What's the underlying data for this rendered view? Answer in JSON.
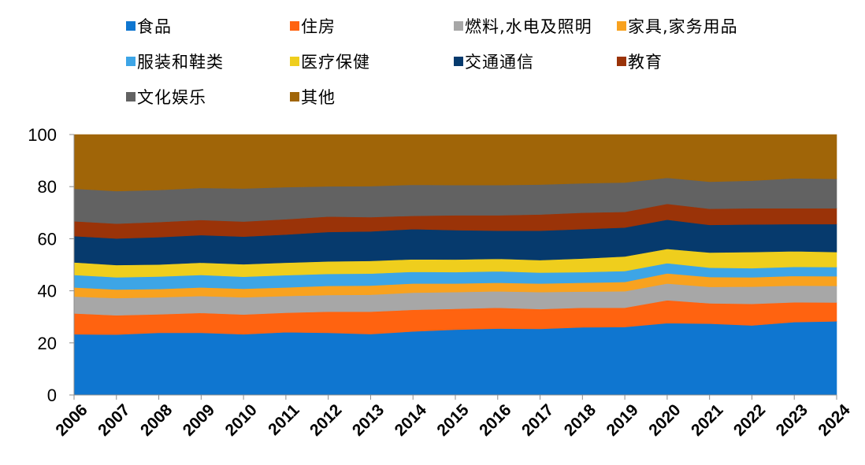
{
  "chart_data": {
    "type": "area",
    "stacked": true,
    "title": "",
    "xlabel": "",
    "ylabel": "",
    "x": [
      "2006",
      "2007",
      "2008",
      "2009",
      "2010",
      "2011",
      "2012",
      "2013",
      "2014",
      "2015",
      "2016",
      "2017",
      "2018",
      "2019",
      "2020",
      "2021",
      "2022",
      "2023",
      "2024"
    ],
    "ylim": [
      0,
      100
    ],
    "yticks": [
      0,
      20,
      40,
      60,
      80,
      100
    ],
    "grid": false,
    "legend": "top",
    "series": [
      {
        "name": "食品",
        "color": "#0F76D0",
        "values": [
          23.3,
          23.2,
          23.9,
          23.9,
          23.3,
          24.1,
          23.9,
          23.4,
          24.4,
          25.1,
          25.5,
          25.4,
          26.0,
          26.1,
          27.6,
          27.4,
          26.7,
          28.0,
          28.3
        ]
      },
      {
        "name": "住房",
        "color": "#FF6310",
        "values": [
          8.0,
          7.4,
          7.1,
          7.6,
          7.6,
          7.5,
          8.1,
          8.6,
          8.3,
          8.0,
          8.0,
          7.6,
          7.5,
          7.4,
          8.8,
          7.8,
          8.3,
          7.6,
          7.2
        ]
      },
      {
        "name": "燃料,水电及照明",
        "color": "#A7A7A7",
        "values": [
          6.5,
          6.6,
          6.5,
          6.5,
          6.6,
          6.4,
          6.4,
          6.5,
          6.6,
          6.4,
          6.3,
          6.5,
          6.2,
          6.3,
          6.4,
          6.3,
          6.6,
          6.4,
          6.4
        ]
      },
      {
        "name": "家具,家务用品",
        "color": "#F8A21F",
        "values": [
          3.5,
          3.3,
          3.2,
          3.3,
          3.3,
          3.3,
          3.5,
          3.5,
          3.5,
          3.3,
          3.3,
          3.3,
          3.4,
          3.6,
          3.9,
          3.8,
          3.6,
          3.7,
          3.7
        ]
      },
      {
        "name": "服装和鞋类",
        "color": "#3DA5E6",
        "values": [
          4.8,
          4.7,
          4.8,
          4.8,
          4.6,
          4.7,
          4.6,
          4.6,
          4.5,
          4.4,
          4.4,
          4.2,
          4.1,
          4.2,
          3.9,
          3.6,
          3.5,
          3.5,
          3.5
        ]
      },
      {
        "name": "医疗保健",
        "color": "#EFCE1D",
        "values": [
          4.8,
          4.7,
          4.6,
          4.7,
          4.8,
          4.8,
          4.8,
          4.9,
          4.8,
          4.8,
          4.8,
          4.8,
          5.2,
          5.6,
          5.5,
          5.8,
          6.2,
          6.0,
          5.8
        ]
      },
      {
        "name": "交通通信",
        "color": "#063A6D",
        "values": [
          10.1,
          10.2,
          10.5,
          10.6,
          10.6,
          10.8,
          11.3,
          11.3,
          11.6,
          11.3,
          10.8,
          11.3,
          11.3,
          11.1,
          11.2,
          10.6,
          10.6,
          10.4,
          10.7
        ]
      },
      {
        "name": "教育",
        "color": "#9A3308",
        "values": [
          5.7,
          5.7,
          5.8,
          5.8,
          5.8,
          5.9,
          5.9,
          5.5,
          5.1,
          5.7,
          5.9,
          6.2,
          6.3,
          6.0,
          6.1,
          6.2,
          6.2,
          6.1,
          6.1
        ]
      },
      {
        "name": "文化娱乐",
        "color": "#626262",
        "values": [
          12.5,
          12.5,
          12.3,
          12.3,
          12.7,
          12.3,
          11.6,
          11.9,
          11.9,
          11.6,
          11.6,
          11.5,
          11.3,
          11.3,
          10.0,
          10.4,
          10.6,
          11.5,
          11.3
        ]
      },
      {
        "name": "其他",
        "color": "#A06508",
        "values": [
          20.8,
          21.7,
          21.3,
          20.5,
          20.7,
          20.2,
          19.9,
          19.8,
          19.3,
          19.4,
          19.4,
          19.2,
          18.7,
          18.4,
          16.6,
          18.1,
          17.7,
          16.8,
          17.0
        ]
      }
    ]
  }
}
